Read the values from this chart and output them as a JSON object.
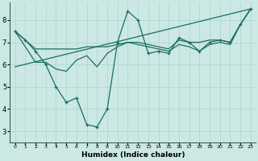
{
  "title": "",
  "xlabel": "Humidex (Indice chaleur)",
  "xlim": [
    -0.5,
    23.5
  ],
  "ylim": [
    2.5,
    8.8
  ],
  "xticks": [
    0,
    1,
    2,
    3,
    4,
    5,
    6,
    7,
    8,
    9,
    10,
    11,
    12,
    13,
    14,
    15,
    16,
    17,
    18,
    19,
    20,
    21,
    22,
    23
  ],
  "yticks": [
    3,
    4,
    5,
    6,
    7,
    8
  ],
  "bg_color": "#cce8e4",
  "line_color": "#1a6e64",
  "grid_color": "#b0d8d2",
  "lines": [
    {
      "x": [
        0,
        1,
        2,
        3,
        4,
        5,
        6,
        7,
        8,
        9,
        10,
        11,
        12,
        13,
        14,
        15,
        16,
        17,
        18,
        19,
        20,
        21,
        22,
        23
      ],
      "y": [
        7.5,
        7.1,
        6.6,
        6.0,
        5.0,
        4.3,
        4.5,
        3.3,
        3.2,
        4.0,
        7.0,
        8.4,
        8.0,
        6.5,
        6.6,
        6.5,
        7.2,
        7.0,
        6.6,
        7.0,
        7.1,
        7.0,
        7.8,
        8.5
      ],
      "marker": true
    },
    {
      "x": [
        0,
        1,
        2,
        3,
        4,
        5,
        6,
        7,
        8,
        9,
        10,
        11,
        12,
        13,
        14,
        15,
        16,
        17,
        18,
        19,
        20,
        21,
        22,
        23
      ],
      "y": [
        7.5,
        7.1,
        6.7,
        6.7,
        6.7,
        6.7,
        6.7,
        6.8,
        6.8,
        6.8,
        6.9,
        7.0,
        7.0,
        6.9,
        6.8,
        6.7,
        7.1,
        7.0,
        7.0,
        7.1,
        7.1,
        7.0,
        7.8,
        8.5
      ],
      "marker": false
    },
    {
      "x": [
        0,
        1,
        2,
        3,
        4,
        5,
        6,
        7,
        8,
        9,
        10,
        11,
        12,
        13,
        14,
        15,
        16,
        17,
        18,
        19,
        20,
        21,
        22,
        23
      ],
      "y": [
        7.5,
        6.8,
        6.1,
        6.1,
        5.8,
        5.7,
        6.2,
        6.4,
        5.9,
        6.5,
        6.8,
        7.0,
        6.9,
        6.8,
        6.7,
        6.6,
        6.9,
        6.8,
        6.6,
        6.9,
        7.0,
        6.9,
        7.8,
        8.5
      ],
      "marker": false
    },
    {
      "x": [
        0,
        23
      ],
      "y": [
        5.9,
        8.5
      ],
      "marker": false
    }
  ]
}
